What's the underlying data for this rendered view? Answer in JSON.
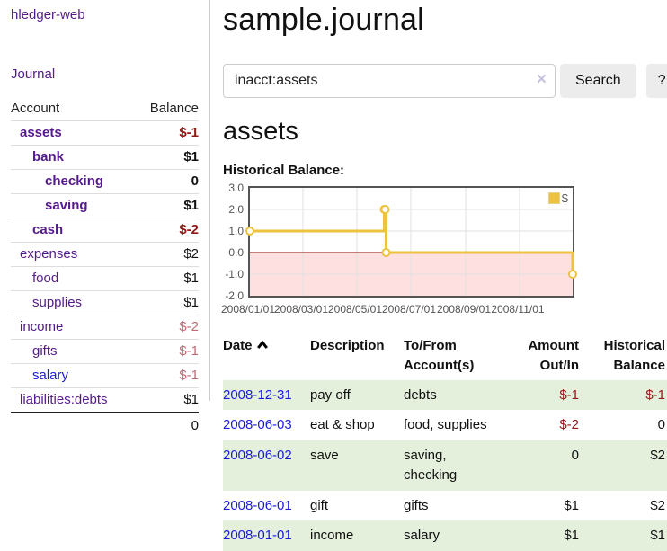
{
  "app": {
    "brand": "hledger-web",
    "nav_journal": "Journal"
  },
  "sidebar": {
    "headers": [
      "Account",
      "Balance"
    ],
    "rows": [
      {
        "name": "assets",
        "level": 1,
        "bold": true,
        "balance": "$-1",
        "neg": "strong"
      },
      {
        "name": "bank",
        "level": 2,
        "bold": true,
        "balance": "$1"
      },
      {
        "name": "checking",
        "level": 3,
        "bold": true,
        "balance": "0"
      },
      {
        "name": "saving",
        "level": 3,
        "bold": true,
        "balance": "$1"
      },
      {
        "name": "cash",
        "level": 2,
        "bold": true,
        "balance": "$-2",
        "neg": "strong"
      },
      {
        "name": "expenses",
        "level": 1,
        "bold": false,
        "balance": "$2"
      },
      {
        "name": "food",
        "level": 2,
        "bold": false,
        "balance": "$1"
      },
      {
        "name": "supplies",
        "level": 2,
        "bold": false,
        "balance": "$1"
      },
      {
        "name": "income",
        "level": 1,
        "bold": false,
        "balance": "$-2",
        "neg": "soft"
      },
      {
        "name": "gifts",
        "level": 2,
        "bold": false,
        "balance": "$-1",
        "neg": "soft"
      },
      {
        "name": "salary",
        "level": 2,
        "bold": false,
        "balance": "$-1",
        "neg": "soft",
        "link_style": "blue"
      },
      {
        "name": "liabilities:debts",
        "level": 1,
        "bold": false,
        "balance": "$1"
      }
    ],
    "total": "0"
  },
  "main": {
    "title": "sample.journal",
    "search": {
      "value": "inacct:assets",
      "clear_icon": "×",
      "button_label": "Search",
      "help_label": "?"
    },
    "account_heading": "assets",
    "section_label": "Historical Balance:"
  },
  "chart_data": {
    "type": "line",
    "style": "step",
    "title": "Historical Balance:",
    "legend": "$",
    "legend_position": "top-right",
    "grid": true,
    "ylim": [
      -2,
      3
    ],
    "xlim": [
      "2008-01-01",
      "2008-12-31"
    ],
    "y_ticks": [
      3.0,
      2.0,
      1.0,
      0.0,
      -1.0,
      -2.0
    ],
    "x_ticks": [
      "2008/01/01",
      "2008/03/01",
      "2008/05/01",
      "2008/07/01",
      "2008/09/01",
      "2008/11/01"
    ],
    "points": [
      {
        "date": "2008-01-01",
        "value": 1
      },
      {
        "date": "2008-06-01",
        "value": 2
      },
      {
        "date": "2008-06-02",
        "value": 2
      },
      {
        "date": "2008-06-03",
        "value": 0
      },
      {
        "date": "2008-12-31",
        "value": -1
      }
    ],
    "negative_region_below": 0
  },
  "register": {
    "headers": [
      "Date",
      "Description",
      "To/From Account(s)",
      "Amount Out/In",
      "Historical Balance"
    ],
    "rows": [
      {
        "date": "2008-12-31",
        "description": "pay off",
        "accounts": "debts",
        "amount": "$-1",
        "amount_neg": true,
        "balance": "$-1",
        "balance_neg": true
      },
      {
        "date": "2008-06-03",
        "description": "eat & shop",
        "accounts": "food, supplies",
        "amount": "$-2",
        "amount_neg": true,
        "balance": "0",
        "balance_neg": false
      },
      {
        "date": "2008-06-02",
        "description": "save",
        "accounts": "saving, checking",
        "amount": "0",
        "amount_neg": false,
        "balance": "$2",
        "balance_neg": false
      },
      {
        "date": "2008-06-01",
        "description": "gift",
        "accounts": "gifts",
        "amount": "$1",
        "amount_neg": false,
        "balance": "$2",
        "balance_neg": false
      },
      {
        "date": "2008-01-01",
        "description": "income",
        "accounts": "salary",
        "amount": "$1",
        "amount_neg": false,
        "balance": "$1",
        "balance_neg": false
      }
    ]
  },
  "colors": {
    "accent_gold": "#EDC240",
    "negative_strong": "#941616",
    "negative_soft": "#bd6d76",
    "link_purple": "#551a8b",
    "link_blue": "#1b1be0",
    "row_green": "#e4efdc",
    "zero_line": "#8b0000",
    "negative_fill": "rgba(255,0,0,0.12)",
    "grid": "#e0e0e0",
    "chart_border": "#545454"
  }
}
